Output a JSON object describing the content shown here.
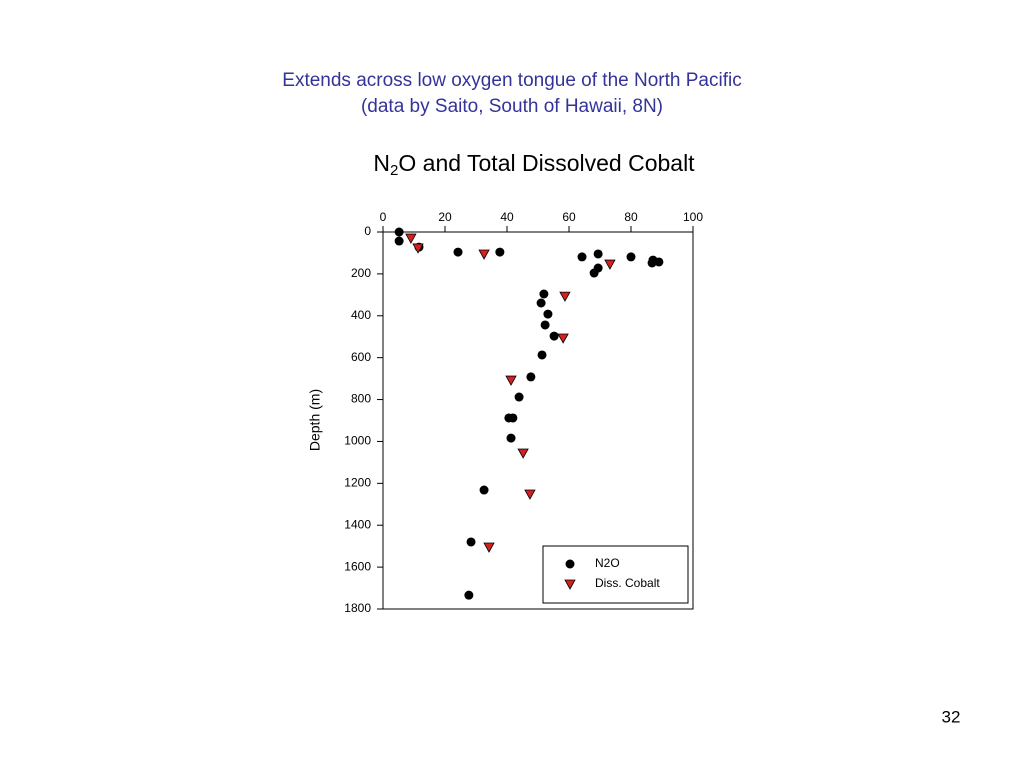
{
  "slide": {
    "title_lines": [
      "Extends across low oxygen tongue of the North Pacific",
      "(data by Saito, South of Hawaii, 8N)"
    ],
    "page_number": "32"
  },
  "chart_data": {
    "type": "scatter",
    "title": [
      "N",
      "2",
      "O and Total Dissolved Cobalt"
    ],
    "y_label": "Depth (m)",
    "xlim": [
      0,
      100
    ],
    "xticks": [
      0,
      20,
      40,
      60,
      80,
      100
    ],
    "x_axis_position": "top",
    "ylim": [
      0,
      1800
    ],
    "yticks": [
      0,
      200,
      400,
      600,
      800,
      1000,
      1200,
      1400,
      1600,
      1800
    ],
    "y_reversed": true,
    "legend": "bottom-right",
    "series": [
      {
        "name": "N2O",
        "color": "#000000",
        "marker": "circle",
        "x": [
          5.2,
          5.2,
          11.6,
          24.2,
          37.7,
          69.4,
          64.2,
          80,
          87.1,
          89,
          86.8,
          69.4,
          68.1,
          51.9,
          51,
          53.2,
          52.3,
          55.2,
          51.3,
          47.7,
          43.9,
          40.6,
          41.9,
          41.3,
          32.6,
          28.4,
          27.7
        ],
        "values": [
          0,
          43,
          72,
          96,
          96,
          105,
          119,
          119,
          134,
          143,
          148,
          172,
          196,
          296,
          339,
          392,
          444,
          497,
          587,
          692,
          788,
          888,
          888,
          984,
          1232,
          1480,
          1734
        ]
      },
      {
        "name": "Diss. Cobalt",
        "color": "#d42020",
        "marker": "triangle-down",
        "x": [
          9,
          11.3,
          32.6,
          73.2,
          58.7,
          58.1,
          41.3,
          45.2,
          47.4,
          34.2
        ],
        "values": [
          29,
          76,
          105,
          153,
          306,
          506,
          707,
          1055,
          1251,
          1504
        ]
      }
    ]
  }
}
